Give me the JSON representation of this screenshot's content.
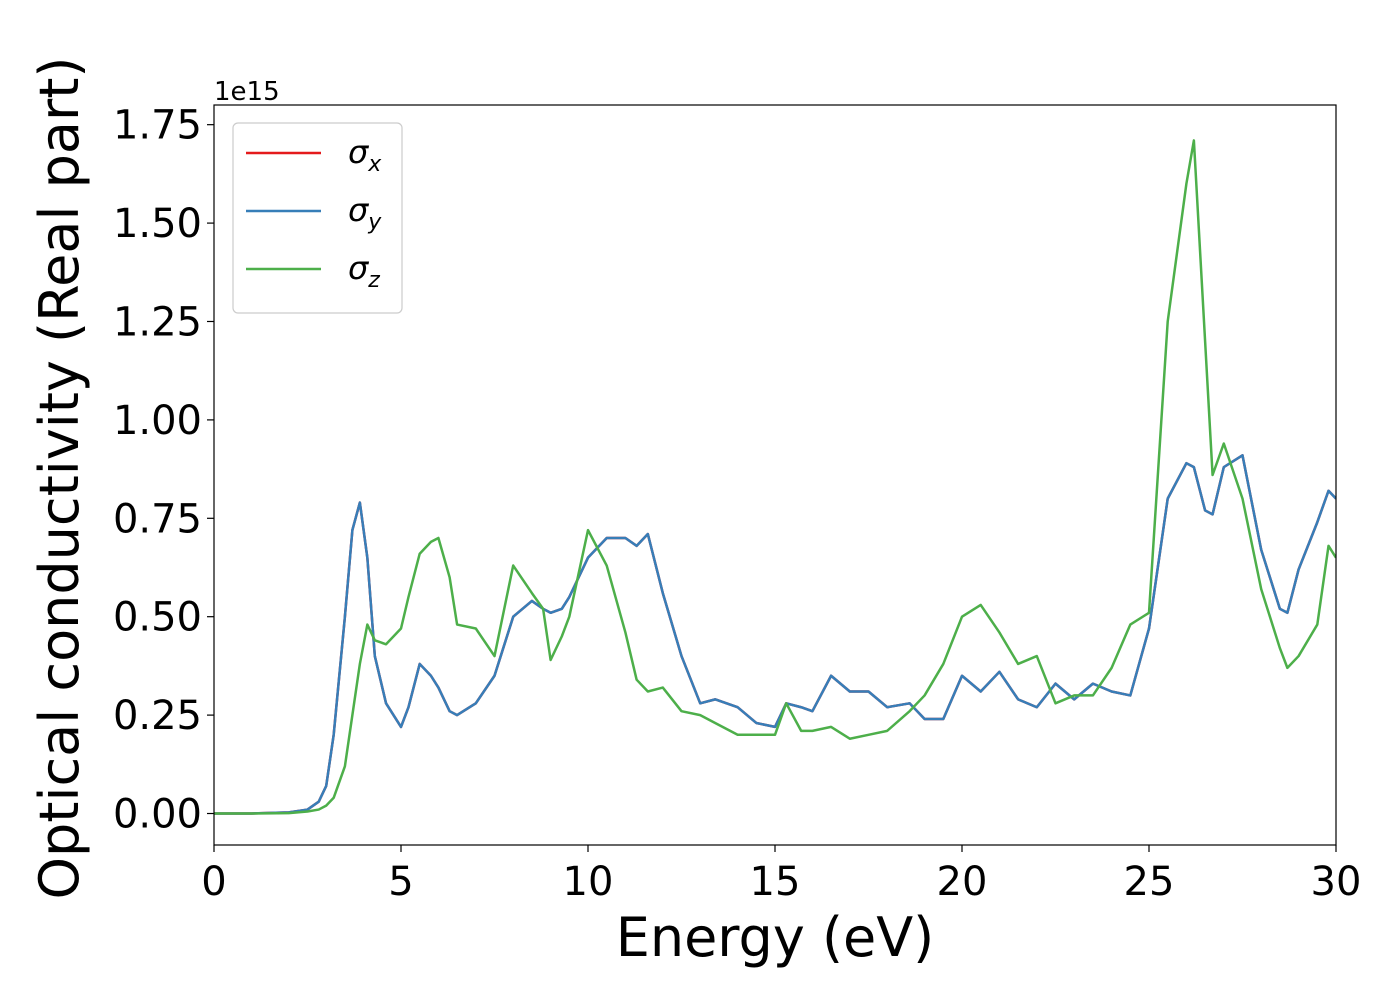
{
  "chart_data": {
    "type": "line",
    "x_label": "Energy (eV)",
    "y_label": "Optical conductivity (Real part)",
    "y_offset_label": "1e15",
    "x": [
      0,
      1,
      2,
      2.5,
      2.8,
      3.0,
      3.2,
      3.5,
      3.7,
      3.9,
      4.1,
      4.3,
      4.6,
      5.0,
      5.2,
      5.5,
      5.8,
      6.0,
      6.3,
      6.5,
      7.0,
      7.5,
      8.0,
      8.5,
      8.8,
      9.0,
      9.3,
      9.5,
      10,
      10.5,
      11,
      11.3,
      11.6,
      12,
      12.5,
      13,
      13.4,
      14,
      14.5,
      15,
      15.3,
      15.7,
      16,
      16.5,
      17,
      17.5,
      18,
      18.6,
      19,
      19.5,
      20,
      20.5,
      21,
      21.5,
      22,
      22.5,
      23,
      23.5,
      24,
      24.5,
      25,
      25.5,
      26,
      26.2,
      26.5,
      26.7,
      27,
      27.5,
      28,
      28.5,
      28.7,
      29,
      29.5,
      29.8,
      30
    ],
    "series": [
      {
        "name": "σx",
        "color": "#e41a1c",
        "values": [
          0,
          0,
          0.003,
          0.01,
          0.03,
          0.07,
          0.2,
          0.5,
          0.72,
          0.79,
          0.65,
          0.4,
          0.28,
          0.22,
          0.27,
          0.38,
          0.35,
          0.32,
          0.26,
          0.25,
          0.28,
          0.35,
          0.5,
          0.54,
          0.52,
          0.51,
          0.52,
          0.55,
          0.65,
          0.7,
          0.7,
          0.68,
          0.71,
          0.56,
          0.4,
          0.28,
          0.29,
          0.27,
          0.23,
          0.22,
          0.28,
          0.27,
          0.26,
          0.35,
          0.31,
          0.31,
          0.27,
          0.28,
          0.24,
          0.24,
          0.35,
          0.31,
          0.36,
          0.29,
          0.27,
          0.33,
          0.29,
          0.33,
          0.31,
          0.3,
          0.47,
          0.8,
          0.89,
          0.88,
          0.77,
          0.76,
          0.88,
          0.91,
          0.67,
          0.52,
          0.51,
          0.62,
          0.74,
          0.82,
          0.8
        ]
      },
      {
        "name": "σy",
        "color": "#377eb8",
        "values": [
          0,
          0,
          0.003,
          0.01,
          0.03,
          0.07,
          0.2,
          0.5,
          0.72,
          0.79,
          0.65,
          0.4,
          0.28,
          0.22,
          0.27,
          0.38,
          0.35,
          0.32,
          0.26,
          0.25,
          0.28,
          0.35,
          0.5,
          0.54,
          0.52,
          0.51,
          0.52,
          0.55,
          0.65,
          0.7,
          0.7,
          0.68,
          0.71,
          0.56,
          0.4,
          0.28,
          0.29,
          0.27,
          0.23,
          0.22,
          0.28,
          0.27,
          0.26,
          0.35,
          0.31,
          0.31,
          0.27,
          0.28,
          0.24,
          0.24,
          0.35,
          0.31,
          0.36,
          0.29,
          0.27,
          0.33,
          0.29,
          0.33,
          0.31,
          0.3,
          0.47,
          0.8,
          0.89,
          0.88,
          0.77,
          0.76,
          0.88,
          0.91,
          0.67,
          0.52,
          0.51,
          0.62,
          0.74,
          0.82,
          0.8
        ]
      },
      {
        "name": "σz",
        "color": "#4daf4a",
        "values": [
          0,
          0,
          0.001,
          0.005,
          0.01,
          0.02,
          0.04,
          0.12,
          0.25,
          0.38,
          0.48,
          0.44,
          0.43,
          0.47,
          0.55,
          0.66,
          0.69,
          0.7,
          0.6,
          0.48,
          0.47,
          0.4,
          0.63,
          0.56,
          0.52,
          0.39,
          0.45,
          0.5,
          0.72,
          0.63,
          0.46,
          0.34,
          0.31,
          0.32,
          0.26,
          0.25,
          0.23,
          0.2,
          0.2,
          0.2,
          0.28,
          0.21,
          0.21,
          0.22,
          0.19,
          0.2,
          0.21,
          0.26,
          0.3,
          0.38,
          0.5,
          0.53,
          0.46,
          0.38,
          0.4,
          0.28,
          0.3,
          0.3,
          0.37,
          0.48,
          0.51,
          1.25,
          1.6,
          1.71,
          1.2,
          0.86,
          0.94,
          0.8,
          0.57,
          0.42,
          0.37,
          0.4,
          0.48,
          0.68,
          0.65
        ]
      }
    ],
    "xlim": [
      0,
      30
    ],
    "xticks": [
      0,
      5,
      10,
      15,
      20,
      25,
      30
    ],
    "ylim": [
      -0.08,
      1.8
    ],
    "yticks": [
      {
        "value": 0,
        "label": "0.00"
      },
      {
        "value": 0.25,
        "label": "0.25"
      },
      {
        "value": 0.5,
        "label": "0.50"
      },
      {
        "value": 0.75,
        "label": "0.75"
      },
      {
        "value": 1,
        "label": "1.00"
      },
      {
        "value": 1.25,
        "label": "1.25"
      },
      {
        "value": 1.5,
        "label": "1.50"
      },
      {
        "value": 1.75,
        "label": "1.75"
      }
    ],
    "legend": "upper left",
    "grid": false
  }
}
